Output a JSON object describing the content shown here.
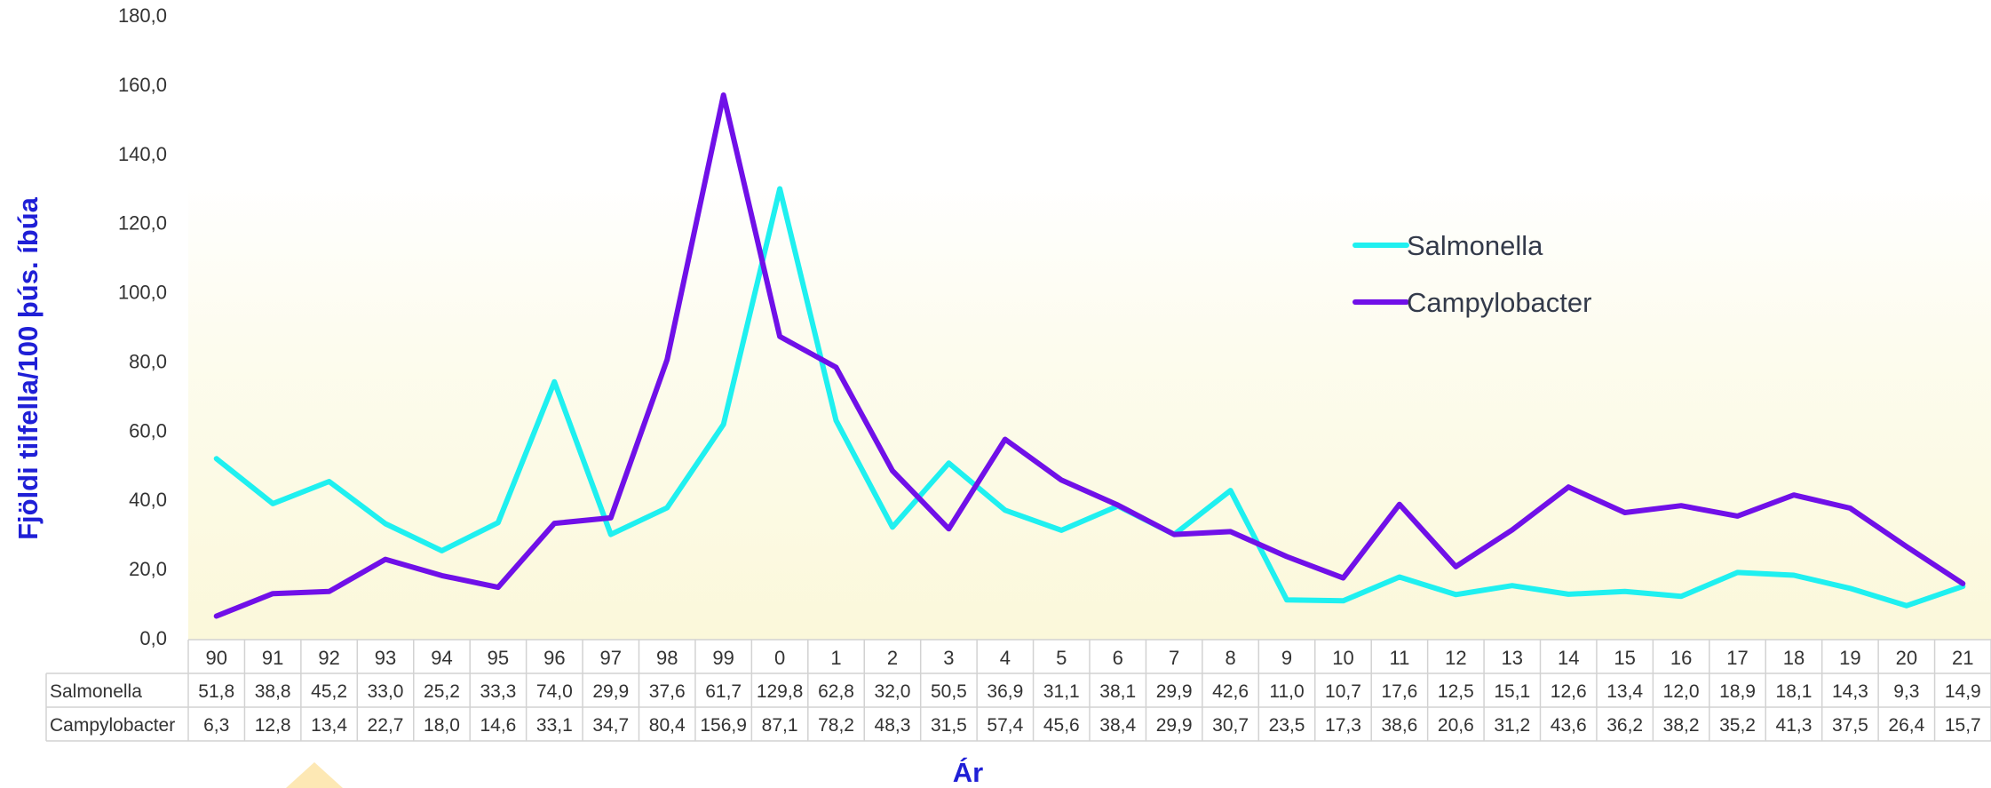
{
  "chart_data": {
    "type": "line",
    "xlabel": "Ár",
    "ylabel": "Fjöldi tilfella/100 þús. íbúa",
    "ylim": [
      0,
      180
    ],
    "yticks": [
      "0,0",
      "20,0",
      "40,0",
      "60,0",
      "80,0",
      "100,0",
      "120,0",
      "140,0",
      "160,0",
      "180,0"
    ],
    "categories": [
      "90",
      "91",
      "92",
      "93",
      "94",
      "95",
      "96",
      "97",
      "98",
      "99",
      "0",
      "1",
      "2",
      "3",
      "4",
      "5",
      "6",
      "7",
      "8",
      "9",
      "10",
      "11",
      "12",
      "13",
      "14",
      "15",
      "16",
      "17",
      "18",
      "19",
      "20",
      "21"
    ],
    "legend_position": "right",
    "data_table": true,
    "series": [
      {
        "name": "Salmonella",
        "color": "#1ff0f0",
        "values": [
          51.8,
          38.8,
          45.2,
          33.0,
          25.2,
          33.3,
          74.0,
          29.9,
          37.6,
          61.7,
          129.8,
          62.8,
          32.0,
          50.5,
          36.9,
          31.1,
          38.1,
          29.9,
          42.6,
          11.0,
          10.7,
          17.6,
          12.5,
          15.1,
          12.6,
          13.4,
          12.0,
          18.9,
          18.1,
          14.3,
          9.3,
          14.9
        ],
        "labels": [
          "51,8",
          "38,8",
          "45,2",
          "33,0",
          "25,2",
          "33,3",
          "74,0",
          "29,9",
          "37,6",
          "61,7",
          "129,8",
          "62,8",
          "32,0",
          "50,5",
          "36,9",
          "31,1",
          "38,1",
          "29,9",
          "42,6",
          "11,0",
          "10,7",
          "17,6",
          "12,5",
          "15,1",
          "12,6",
          "13,4",
          "12,0",
          "18,9",
          "18,1",
          "14,3",
          "9,3",
          "14,9"
        ]
      },
      {
        "name": "Campylobacter",
        "color": "#7010e8",
        "values": [
          6.3,
          12.8,
          13.4,
          22.7,
          18.0,
          14.6,
          33.1,
          34.7,
          80.4,
          156.9,
          87.1,
          78.2,
          48.3,
          31.5,
          57.4,
          45.6,
          38.4,
          29.9,
          30.7,
          23.5,
          17.3,
          38.6,
          20.6,
          31.2,
          43.6,
          36.2,
          38.2,
          35.2,
          41.3,
          37.5,
          26.4,
          15.7
        ],
        "labels": [
          "6,3",
          "12,8",
          "13,4",
          "22,7",
          "18,0",
          "14,6",
          "33,1",
          "34,7",
          "80,4",
          "156,9",
          "87,1",
          "78,2",
          "48,3",
          "31,5",
          "57,4",
          "45,6",
          "38,4",
          "29,9",
          "30,7",
          "23,5",
          "17,3",
          "38,6",
          "20,6",
          "31,2",
          "43,6",
          "36,2",
          "38,2",
          "35,2",
          "41,3",
          "37,5",
          "26,4",
          "15,7"
        ]
      }
    ]
  }
}
